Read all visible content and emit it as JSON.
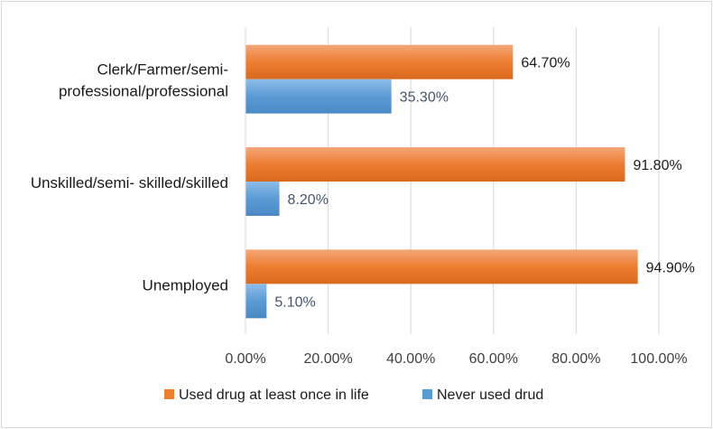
{
  "chart_data": {
    "type": "bar",
    "orientation": "horizontal",
    "categories": [
      "Clerk/Farmer/semi-professional/professional",
      "Unskilled/semi- skilled/skilled",
      "Unemployed"
    ],
    "category_lines": [
      [
        "Clerk/Farmer/semi-",
        "professional/professional"
      ],
      [
        "Unskilled/semi- skilled/skilled"
      ],
      [
        "Unemployed"
      ]
    ],
    "series": [
      {
        "name": "Used drug at least once in life",
        "values": [
          64.7,
          91.8,
          94.9
        ],
        "labels": [
          "64.70%",
          "91.80%",
          "94.90%"
        ],
        "color": "#ed7d31"
      },
      {
        "name": "Never used drud",
        "values": [
          35.3,
          8.2,
          5.1
        ],
        "labels": [
          "35.30%",
          "8.20%",
          "5.10%"
        ],
        "color": "#5b9bd5"
      }
    ],
    "xlim": [
      0,
      100
    ],
    "x_ticks": [
      0,
      20,
      40,
      60,
      80,
      100
    ],
    "x_tick_labels": [
      "0.00%",
      "20.00%",
      "40.00%",
      "60.00%",
      "80.00%",
      "100.00%"
    ],
    "grid": "vertical",
    "legend": "bottom",
    "title": "",
    "xlabel": "",
    "ylabel": ""
  }
}
